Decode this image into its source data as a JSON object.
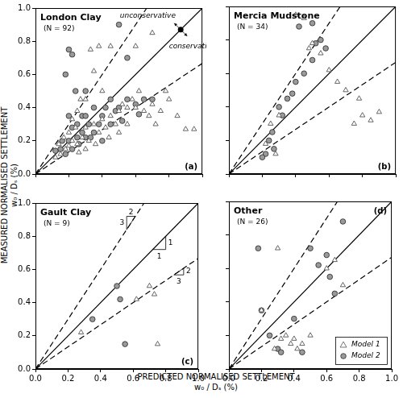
{
  "x_label": [
    "PREDICTED NORMALISED SETTLEMENT",
    "w₀ / Dₛ (%)"
  ],
  "y_label": [
    "MEASURED NORMALISED SETTLEMENT",
    "w₀ / Dₛ (%)"
  ],
  "chart_data": [
    {
      "type": "scatter",
      "title": "London Clay",
      "subtitle": "(N = 92)",
      "annotations": [
        "(a)",
        "unconservative",
        "conservative"
      ],
      "xlim": [
        0,
        1
      ],
      "ylim": [
        0,
        1
      ],
      "xticks": [
        {
          "value": 0,
          "label": "0.0"
        },
        0.2,
        0.4,
        0.6,
        0.8,
        {
          "value": 1,
          "label": "1.0"
        }
      ],
      "yticks": [
        {
          "value": 0,
          "label": "0.0"
        },
        0.2,
        0.4,
        0.6,
        0.8,
        {
          "value": 1,
          "label": "1.0"
        }
      ],
      "grid": false,
      "tick_labels": "y",
      "reference_lines": [
        {
          "slope": 1.5,
          "line_style": "dashed"
        },
        {
          "slope": 1,
          "line_style": "solid"
        },
        {
          "slope": 0.667,
          "line_style": "dashed"
        }
      ],
      "series": [
        {
          "name": "Model 1",
          "color": "#555555",
          "marker": "triangle",
          "values": [
            [
              0.15,
              0.12
            ],
            [
              0.18,
              0.15
            ],
            [
              0.2,
              0.17
            ],
            [
              0.22,
              0.2
            ],
            [
              0.25,
              0.18
            ],
            [
              0.12,
              0.1
            ],
            [
              0.2,
              0.25
            ],
            [
              0.28,
              0.22
            ],
            [
              0.3,
              0.28
            ],
            [
              0.32,
              0.2
            ],
            [
              0.35,
              0.3
            ],
            [
              0.38,
              0.25
            ],
            [
              0.4,
              0.33
            ],
            [
              0.42,
              0.28
            ],
            [
              0.45,
              0.35
            ],
            [
              0.48,
              0.3
            ],
            [
              0.5,
              0.38
            ],
            [
              0.52,
              0.42
            ],
            [
              0.55,
              0.4
            ],
            [
              0.58,
              0.45
            ],
            [
              0.6,
              0.4
            ],
            [
              0.62,
              0.5
            ],
            [
              0.65,
              0.38
            ],
            [
              0.68,
              0.35
            ],
            [
              0.7,
              0.42
            ],
            [
              0.72,
              0.3
            ],
            [
              0.75,
              0.38
            ],
            [
              0.78,
              0.5
            ],
            [
              0.8,
              0.45
            ],
            [
              0.85,
              0.35
            ],
            [
              0.9,
              0.27
            ],
            [
              0.95,
              0.27
            ],
            [
              0.33,
              0.75
            ],
            [
              0.38,
              0.77
            ],
            [
              0.45,
              0.77
            ],
            [
              0.6,
              0.77
            ],
            [
              0.7,
              0.85
            ],
            [
              0.35,
              0.62
            ],
            [
              0.3,
              0.45
            ],
            [
              0.25,
              0.38
            ],
            [
              0.22,
              0.33
            ],
            [
              0.27,
              0.45
            ],
            [
              0.4,
              0.5
            ],
            [
              0.55,
              0.3
            ],
            [
              0.5,
              0.25
            ],
            [
              0.3,
              0.15
            ],
            [
              0.17,
              0.22
            ],
            [
              0.24,
              0.28
            ],
            [
              0.36,
              0.18
            ],
            [
              0.44,
              0.22
            ],
            [
              0.26,
              0.13
            ],
            [
              0.14,
              0.18
            ]
          ]
        },
        {
          "name": "Model 2",
          "color": "#9a9a9a",
          "marker": "circle",
          "values": [
            [
              0.18,
              0.6
            ],
            [
              0.2,
              0.75
            ],
            [
              0.22,
              0.72
            ],
            [
              0.5,
              0.9
            ],
            [
              0.55,
              0.7
            ],
            [
              0.15,
              0.15
            ],
            [
              0.18,
              0.12
            ],
            [
              0.2,
              0.2
            ],
            [
              0.22,
              0.15
            ],
            [
              0.25,
              0.22
            ],
            [
              0.28,
              0.25
            ],
            [
              0.3,
              0.22
            ],
            [
              0.32,
              0.3
            ],
            [
              0.35,
              0.25
            ],
            [
              0.38,
              0.3
            ],
            [
              0.4,
              0.35
            ],
            [
              0.42,
              0.4
            ],
            [
              0.45,
              0.3
            ],
            [
              0.48,
              0.38
            ],
            [
              0.5,
              0.4
            ],
            [
              0.52,
              0.32
            ],
            [
              0.55,
              0.45
            ],
            [
              0.6,
              0.42
            ],
            [
              0.62,
              0.36
            ],
            [
              0.65,
              0.45
            ],
            [
              0.7,
              0.45
            ],
            [
              0.28,
              0.35
            ],
            [
              0.25,
              0.3
            ],
            [
              0.3,
              0.35
            ],
            [
              0.35,
              0.4
            ],
            [
              0.22,
              0.28
            ],
            [
              0.2,
              0.35
            ],
            [
              0.24,
              0.5
            ],
            [
              0.3,
              0.5
            ],
            [
              0.12,
              0.14
            ],
            [
              0.16,
              0.2
            ],
            [
              0.26,
              0.18
            ],
            [
              0.33,
              0.22
            ],
            [
              0.4,
              0.2
            ],
            [
              0.45,
              0.45
            ]
          ]
        }
      ]
    },
    {
      "type": "scatter",
      "title": "Mercia Mudstone",
      "subtitle": "(N = 34)",
      "annotations": [
        "(b)"
      ],
      "xlim": [
        0,
        1
      ],
      "ylim": [
        0,
        1
      ],
      "xticks": [
        {
          "value": 0,
          "label": "0.0"
        },
        0.2,
        0.4,
        0.6,
        0.8,
        {
          "value": 1,
          "label": "1.0"
        }
      ],
      "yticks": [
        {
          "value": 0,
          "label": "0.0"
        },
        0.2,
        0.4,
        0.6,
        0.8,
        {
          "value": 1,
          "label": "1.0"
        }
      ],
      "grid": false,
      "tick_labels": false,
      "reference_lines": [
        {
          "slope": 1.5,
          "line_style": "dashed"
        },
        {
          "slope": 1,
          "line_style": "solid"
        },
        {
          "slope": 0.667,
          "line_style": "dashed"
        }
      ],
      "series": [
        {
          "name": "Model 1",
          "color": "#555555",
          "marker": "triangle",
          "values": [
            [
              0.4,
              0.95
            ],
            [
              0.45,
              0.93
            ],
            [
              0.5,
              0.78
            ],
            [
              0.48,
              0.75
            ],
            [
              0.55,
              0.72
            ],
            [
              0.6,
              0.62
            ],
            [
              0.65,
              0.55
            ],
            [
              0.7,
              0.5
            ],
            [
              0.78,
              0.45
            ],
            [
              0.8,
              0.35
            ],
            [
              0.85,
              0.32
            ],
            [
              0.9,
              0.37
            ],
            [
              0.25,
              0.3
            ],
            [
              0.3,
              0.35
            ],
            [
              0.22,
              0.18
            ],
            [
              0.28,
              0.12
            ],
            [
              0.75,
              0.3
            ]
          ]
        },
        {
          "name": "Model 2",
          "color": "#9a9a9a",
          "marker": "circle",
          "values": [
            [
              0.42,
              0.88
            ],
            [
              0.5,
              0.9
            ],
            [
              0.52,
              0.78
            ],
            [
              0.55,
              0.8
            ],
            [
              0.58,
              0.75
            ],
            [
              0.5,
              0.68
            ],
            [
              0.45,
              0.6
            ],
            [
              0.4,
              0.55
            ],
            [
              0.38,
              0.48
            ],
            [
              0.35,
              0.45
            ],
            [
              0.3,
              0.4
            ],
            [
              0.32,
              0.35
            ],
            [
              0.26,
              0.25
            ],
            [
              0.24,
              0.2
            ],
            [
              0.22,
              0.12
            ],
            [
              0.2,
              0.1
            ],
            [
              0.27,
              0.15
            ]
          ]
        }
      ]
    },
    {
      "type": "scatter",
      "title": "Gault Clay",
      "subtitle": "(N = 9)",
      "annotations": [
        "(c)",
        "3",
        "2",
        "1",
        "1",
        "2",
        "3"
      ],
      "xlim": [
        0,
        1
      ],
      "ylim": [
        0,
        1
      ],
      "xticks": [
        {
          "value": 0,
          "label": "0.0"
        },
        0.2,
        0.4,
        0.6,
        0.8,
        {
          "value": 1,
          "label": "1.0"
        }
      ],
      "yticks": [
        {
          "value": 0,
          "label": "0.0"
        },
        0.2,
        0.4,
        0.6,
        0.8,
        {
          "value": 1,
          "label": "1.0"
        }
      ],
      "grid": false,
      "tick_labels": true,
      "reference_lines": [
        {
          "slope": 1.5,
          "line_style": "dashed"
        },
        {
          "slope": 1,
          "line_style": "solid"
        },
        {
          "slope": 0.667,
          "line_style": "dashed"
        }
      ],
      "series": [
        {
          "name": "Model 1",
          "color": "#555555",
          "marker": "triangle",
          "values": [
            [
              0.28,
              0.22
            ],
            [
              0.62,
              0.42
            ],
            [
              0.7,
              0.5
            ],
            [
              0.73,
              0.45
            ],
            [
              0.75,
              0.15
            ]
          ]
        },
        {
          "name": "Model 2",
          "color": "#9a9a9a",
          "marker": "circle",
          "values": [
            [
              0.35,
              0.3
            ],
            [
              0.5,
              0.5
            ],
            [
              0.52,
              0.42
            ],
            [
              0.55,
              0.15
            ]
          ]
        }
      ]
    },
    {
      "type": "scatter",
      "title": "Other",
      "subtitle": "(N = 26)",
      "annotations": [
        "(d)"
      ],
      "xlim": [
        0,
        1
      ],
      "ylim": [
        0,
        1
      ],
      "xticks": [
        {
          "value": 0,
          "label": "0.0"
        },
        0.2,
        0.4,
        0.6,
        0.8,
        {
          "value": 1,
          "label": "1.0"
        }
      ],
      "yticks": [
        {
          "value": 0,
          "label": "0.0"
        },
        0.2,
        0.4,
        0.6,
        0.8,
        {
          "value": 1,
          "label": "1.0"
        }
      ],
      "grid": false,
      "tick_labels": "x",
      "legend": "bottom right",
      "reference_lines": [
        {
          "slope": 1.5,
          "line_style": "dashed"
        },
        {
          "slope": 1,
          "line_style": "solid"
        },
        {
          "slope": 0.667,
          "line_style": "dashed"
        }
      ],
      "series": [
        {
          "name": "Model 1",
          "color": "#555555",
          "marker": "triangle",
          "values": [
            [
              0.2,
              0.35
            ],
            [
              0.3,
              0.72
            ],
            [
              0.35,
              0.2
            ],
            [
              0.38,
              0.15
            ],
            [
              0.4,
              0.18
            ],
            [
              0.42,
              0.12
            ],
            [
              0.32,
              0.18
            ],
            [
              0.28,
              0.12
            ],
            [
              0.6,
              0.6
            ],
            [
              0.65,
              0.65
            ],
            [
              0.7,
              0.5
            ],
            [
              0.45,
              0.15
            ],
            [
              0.5,
              0.2
            ]
          ]
        },
        {
          "name": "Model 2",
          "color": "#9a9a9a",
          "marker": "circle",
          "values": [
            [
              0.18,
              0.72
            ],
            [
              0.2,
              0.35
            ],
            [
              0.25,
              0.2
            ],
            [
              0.3,
              0.12
            ],
            [
              0.32,
              0.1
            ],
            [
              0.45,
              0.1
            ],
            [
              0.5,
              0.72
            ],
            [
              0.55,
              0.62
            ],
            [
              0.6,
              0.68
            ],
            [
              0.62,
              0.55
            ],
            [
              0.7,
              0.88
            ],
            [
              0.65,
              0.45
            ],
            [
              0.4,
              0.3
            ]
          ]
        }
      ]
    }
  ]
}
